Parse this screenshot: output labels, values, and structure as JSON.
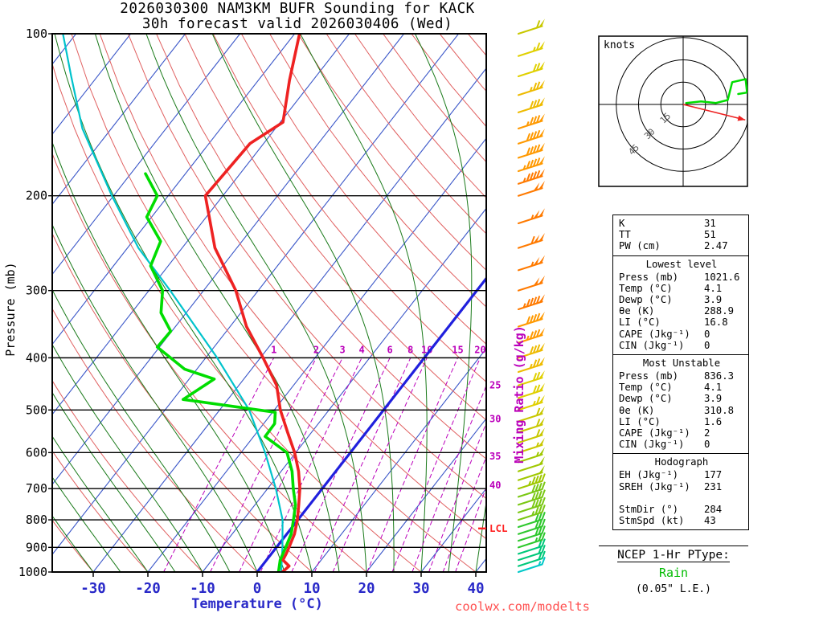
{
  "title": {
    "line1": "2026030300 NAM3KM BUFR Sounding for KACK",
    "line2": "30h forecast valid 2026030406 (Wed)"
  },
  "axes": {
    "pressure_label": "Pressure (mb)",
    "temperature_label": "Temperature (°C)",
    "mixing_ratio_label": "Mixing Ratio (g/kg)",
    "pressure_ticks": [
      100,
      200,
      300,
      400,
      500,
      600,
      700,
      800,
      900,
      1000
    ],
    "temperature_ticks": [
      -30,
      -20,
      -10,
      0,
      10,
      20,
      30,
      40
    ]
  },
  "watermark": "coolwx.com/modelts",
  "hodograph": {
    "label": "knots",
    "ring_labels": [
      15,
      30,
      45
    ],
    "trace_uv": [
      [
        2,
        1
      ],
      [
        12,
        2
      ],
      [
        22,
        1
      ],
      [
        30,
        3
      ],
      [
        33,
        15
      ],
      [
        42,
        17
      ],
      [
        43,
        8
      ],
      [
        37,
        7
      ]
    ],
    "storm_motion": {
      "dir": 284,
      "spd": 43
    }
  },
  "table": {
    "sections": [
      {
        "header": null,
        "rows": [
          [
            "K",
            "31"
          ],
          [
            "TT",
            "51"
          ],
          [
            "PW (cm)",
            "2.47"
          ]
        ]
      },
      {
        "header": "Lowest level",
        "rows": [
          [
            "Press (mb)",
            "1021.6"
          ],
          [
            "Temp (°C)",
            "4.1"
          ],
          [
            "Dewp (°C)",
            "3.9"
          ],
          [
            "θe (K)",
            "288.9"
          ],
          [
            "LI (°C)",
            "16.8"
          ],
          [
            "CAPE (Jkg⁻¹)",
            "0"
          ],
          [
            "CIN (Jkg⁻¹)",
            "0"
          ]
        ]
      },
      {
        "header": "Most Unstable",
        "rows": [
          [
            "Press (mb)",
            "836.3"
          ],
          [
            "Temp (°C)",
            "4.1"
          ],
          [
            "Dewp (°C)",
            "3.9"
          ],
          [
            "θe (K)",
            "310.8"
          ],
          [
            "LI (°C)",
            "1.6"
          ],
          [
            "CAPE (Jkg⁻¹)",
            "2"
          ],
          [
            "CIN (Jkg⁻¹)",
            "0"
          ]
        ]
      },
      {
        "header": "Hodograph",
        "rows": [
          [
            "EH (Jkg⁻¹)",
            "177"
          ],
          [
            "SREH (Jkg⁻¹)",
            "231"
          ],
          [
            "",
            ""
          ],
          [
            "StmDir (°)",
            "284"
          ],
          [
            "StmSpd (kt)",
            "43"
          ]
        ]
      }
    ]
  },
  "ptype": {
    "heading": "NCEP 1-Hr PType:",
    "value": "Rain",
    "note": "(0.05\" L.E.)"
  },
  "chart_data": {
    "type": "skewt_log_p_sounding",
    "pressure_axis_mb": [
      100,
      1000
    ],
    "temperature_axis_c": [
      -30,
      40
    ],
    "freezing_isotherm_c": 0,
    "lcl": {
      "label": "LCL",
      "pressure": 830
    },
    "mixing_ratio_lines": {
      "values": [
        1,
        2,
        3,
        4,
        6,
        8,
        10,
        15,
        20,
        25,
        30,
        35,
        40
      ]
    },
    "temperature_trace": {
      "color": "#ee2222",
      "points": [
        [
          1000,
          4.6
        ],
        [
          975,
          5.0
        ],
        [
          950,
          3.0
        ],
        [
          925,
          2.7
        ],
        [
          900,
          2.3
        ],
        [
          850,
          1.4
        ],
        [
          800,
          -0.1
        ],
        [
          750,
          -2.0
        ],
        [
          700,
          -4.1
        ],
        [
          650,
          -6.8
        ],
        [
          600,
          -10.2
        ],
        [
          550,
          -14.4
        ],
        [
          500,
          -18.9
        ],
        [
          450,
          -23.1
        ],
        [
          400,
          -29.5
        ],
        [
          350,
          -37.0
        ],
        [
          300,
          -44.1
        ],
        [
          250,
          -54.0
        ],
        [
          200,
          -63.2
        ],
        [
          160,
          -62.5
        ],
        [
          146,
          -59.5
        ],
        [
          122,
          -64.3
        ],
        [
          100,
          -69.1
        ]
      ]
    },
    "dewpoint_trace": {
      "color": "#00dd00",
      "points": [
        [
          1000,
          3.9
        ],
        [
          950,
          2.5
        ],
        [
          900,
          1.7
        ],
        [
          850,
          0.8
        ],
        [
          800,
          -0.8
        ],
        [
          750,
          -2.6
        ],
        [
          700,
          -5.3
        ],
        [
          650,
          -8.0
        ],
        [
          600,
          -11.6
        ],
        [
          560,
          -17.9
        ],
        [
          530,
          -18.0
        ],
        [
          505,
          -19.5
        ],
        [
          478,
          -38.2
        ],
        [
          438,
          -35.4
        ],
        [
          420,
          -42.2
        ],
        [
          382,
          -50.4
        ],
        [
          357,
          -50.2
        ],
        [
          330,
          -54.6
        ],
        [
          300,
          -57.5
        ],
        [
          270,
          -63.2
        ],
        [
          243,
          -64.9
        ],
        [
          219,
          -70.9
        ],
        [
          200,
          -72.0
        ],
        [
          182,
          -77.3
        ]
      ]
    },
    "parcel_trace": {
      "color": "#00c3cc",
      "points": [
        [
          1000,
          4.4
        ],
        [
          900,
          1.1
        ],
        [
          800,
          -2.8
        ],
        [
          700,
          -8.5
        ],
        [
          600,
          -15.6
        ],
        [
          500,
          -24.6
        ],
        [
          400,
          -37.9
        ],
        [
          300,
          -56.1
        ],
        [
          250,
          -68.0
        ],
        [
          200,
          -80.3
        ],
        [
          150,
          -95.3
        ],
        [
          120,
          -104.8
        ],
        [
          100,
          -112.4
        ]
      ]
    },
    "winds_p_dir_spd": [
      [
        1000,
        250,
        15
      ],
      [
        975,
        252,
        18
      ],
      [
        950,
        254,
        20
      ],
      [
        925,
        256,
        22
      ],
      [
        900,
        258,
        25
      ],
      [
        875,
        260,
        28
      ],
      [
        850,
        262,
        30
      ],
      [
        825,
        264,
        32
      ],
      [
        800,
        266,
        35
      ],
      [
        775,
        267,
        38
      ],
      [
        750,
        268,
        40
      ],
      [
        725,
        270,
        42
      ],
      [
        700,
        271,
        45
      ],
      [
        675,
        272,
        48
      ],
      [
        650,
        273,
        50
      ],
      [
        625,
        274,
        53
      ],
      [
        600,
        275,
        55
      ],
      [
        575,
        276,
        58
      ],
      [
        550,
        277,
        60
      ],
      [
        525,
        278,
        62
      ],
      [
        500,
        279,
        65
      ],
      [
        475,
        280,
        68
      ],
      [
        450,
        281,
        72
      ],
      [
        425,
        282,
        75
      ],
      [
        400,
        283,
        80
      ],
      [
        375,
        284,
        85
      ],
      [
        350,
        284,
        90
      ],
      [
        325,
        285,
        95
      ],
      [
        300,
        286,
        100
      ],
      [
        275,
        287,
        105
      ],
      [
        250,
        288,
        110
      ],
      [
        225,
        288,
        105
      ],
      [
        200,
        289,
        100
      ],
      [
        190,
        289,
        97
      ],
      [
        180,
        289,
        94
      ],
      [
        170,
        290,
        91
      ],
      [
        160,
        290,
        88
      ],
      [
        150,
        290,
        85
      ],
      [
        140,
        290,
        80
      ],
      [
        130,
        290,
        76
      ],
      [
        120,
        290,
        72
      ],
      [
        110,
        290,
        66
      ],
      [
        100,
        290,
        60
      ]
    ]
  }
}
